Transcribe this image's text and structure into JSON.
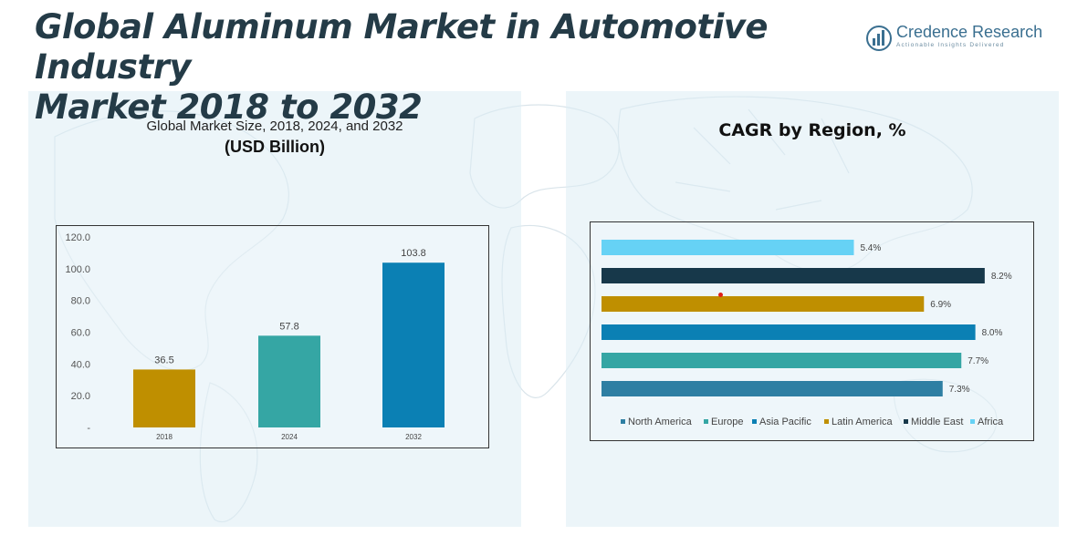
{
  "header": {
    "title_line1": "Global Aluminum Market in Automotive Industry",
    "title_line2": "Market 2018 to 2032"
  },
  "logo": {
    "name": "Credence Research",
    "tagline": "Actionable Insights Delivered",
    "icon": "bar-chart-logo-icon"
  },
  "colors": {
    "panel_bg": "#dcecf4",
    "north_america": "#2e7fa3",
    "europe": "#35a6a4",
    "asia_pacific": "#0b80b4",
    "latin_america": "#bf8f00",
    "middle_east": "#17384a",
    "africa": "#66d2f5"
  },
  "left_panel": {
    "subtitle": "Global Market Size, 2018, 2024, and 2032",
    "unit": "(USD Billion)"
  },
  "right_panel": {
    "title": "CAGR by Region, %"
  },
  "chart_data": [
    {
      "type": "bar",
      "orientation": "vertical",
      "categories": [
        "2018",
        "2024",
        "2032"
      ],
      "values": [
        36.5,
        57.8,
        103.8
      ],
      "value_labels": [
        "36.5",
        "57.8",
        "103.8"
      ],
      "bar_colors": [
        "#bf8f00",
        "#35a6a4",
        "#0b80b4"
      ],
      "ylim": [
        0,
        120
      ],
      "yticks": [
        0,
        20,
        40,
        60,
        80,
        100,
        120
      ],
      "ytick_labels": [
        "-",
        "20.0",
        "40.0",
        "60.0",
        "80.0",
        "100.0",
        "120.0"
      ],
      "grid": false
    },
    {
      "type": "bar",
      "orientation": "horizontal",
      "categories": [
        "North America",
        "Europe",
        "Asia Pacific",
        "Latin America",
        "Middle East",
        "Africa"
      ],
      "values": [
        7.3,
        7.7,
        8.0,
        6.9,
        8.2,
        5.4
      ],
      "value_labels": [
        "7.3%",
        "7.7%",
        "8.0%",
        "6.9%",
        "8.2%",
        "5.4%"
      ],
      "series_colors": [
        "#2e7fa3",
        "#35a6a4",
        "#0b80b4",
        "#bf8f00",
        "#17384a",
        "#66d2f5"
      ],
      "legend": [
        "North America",
        "Europe",
        "Asia Pacific",
        "Latin America",
        "Middle East",
        "Africa"
      ],
      "legend_position": "bottom",
      "grid": false
    }
  ]
}
